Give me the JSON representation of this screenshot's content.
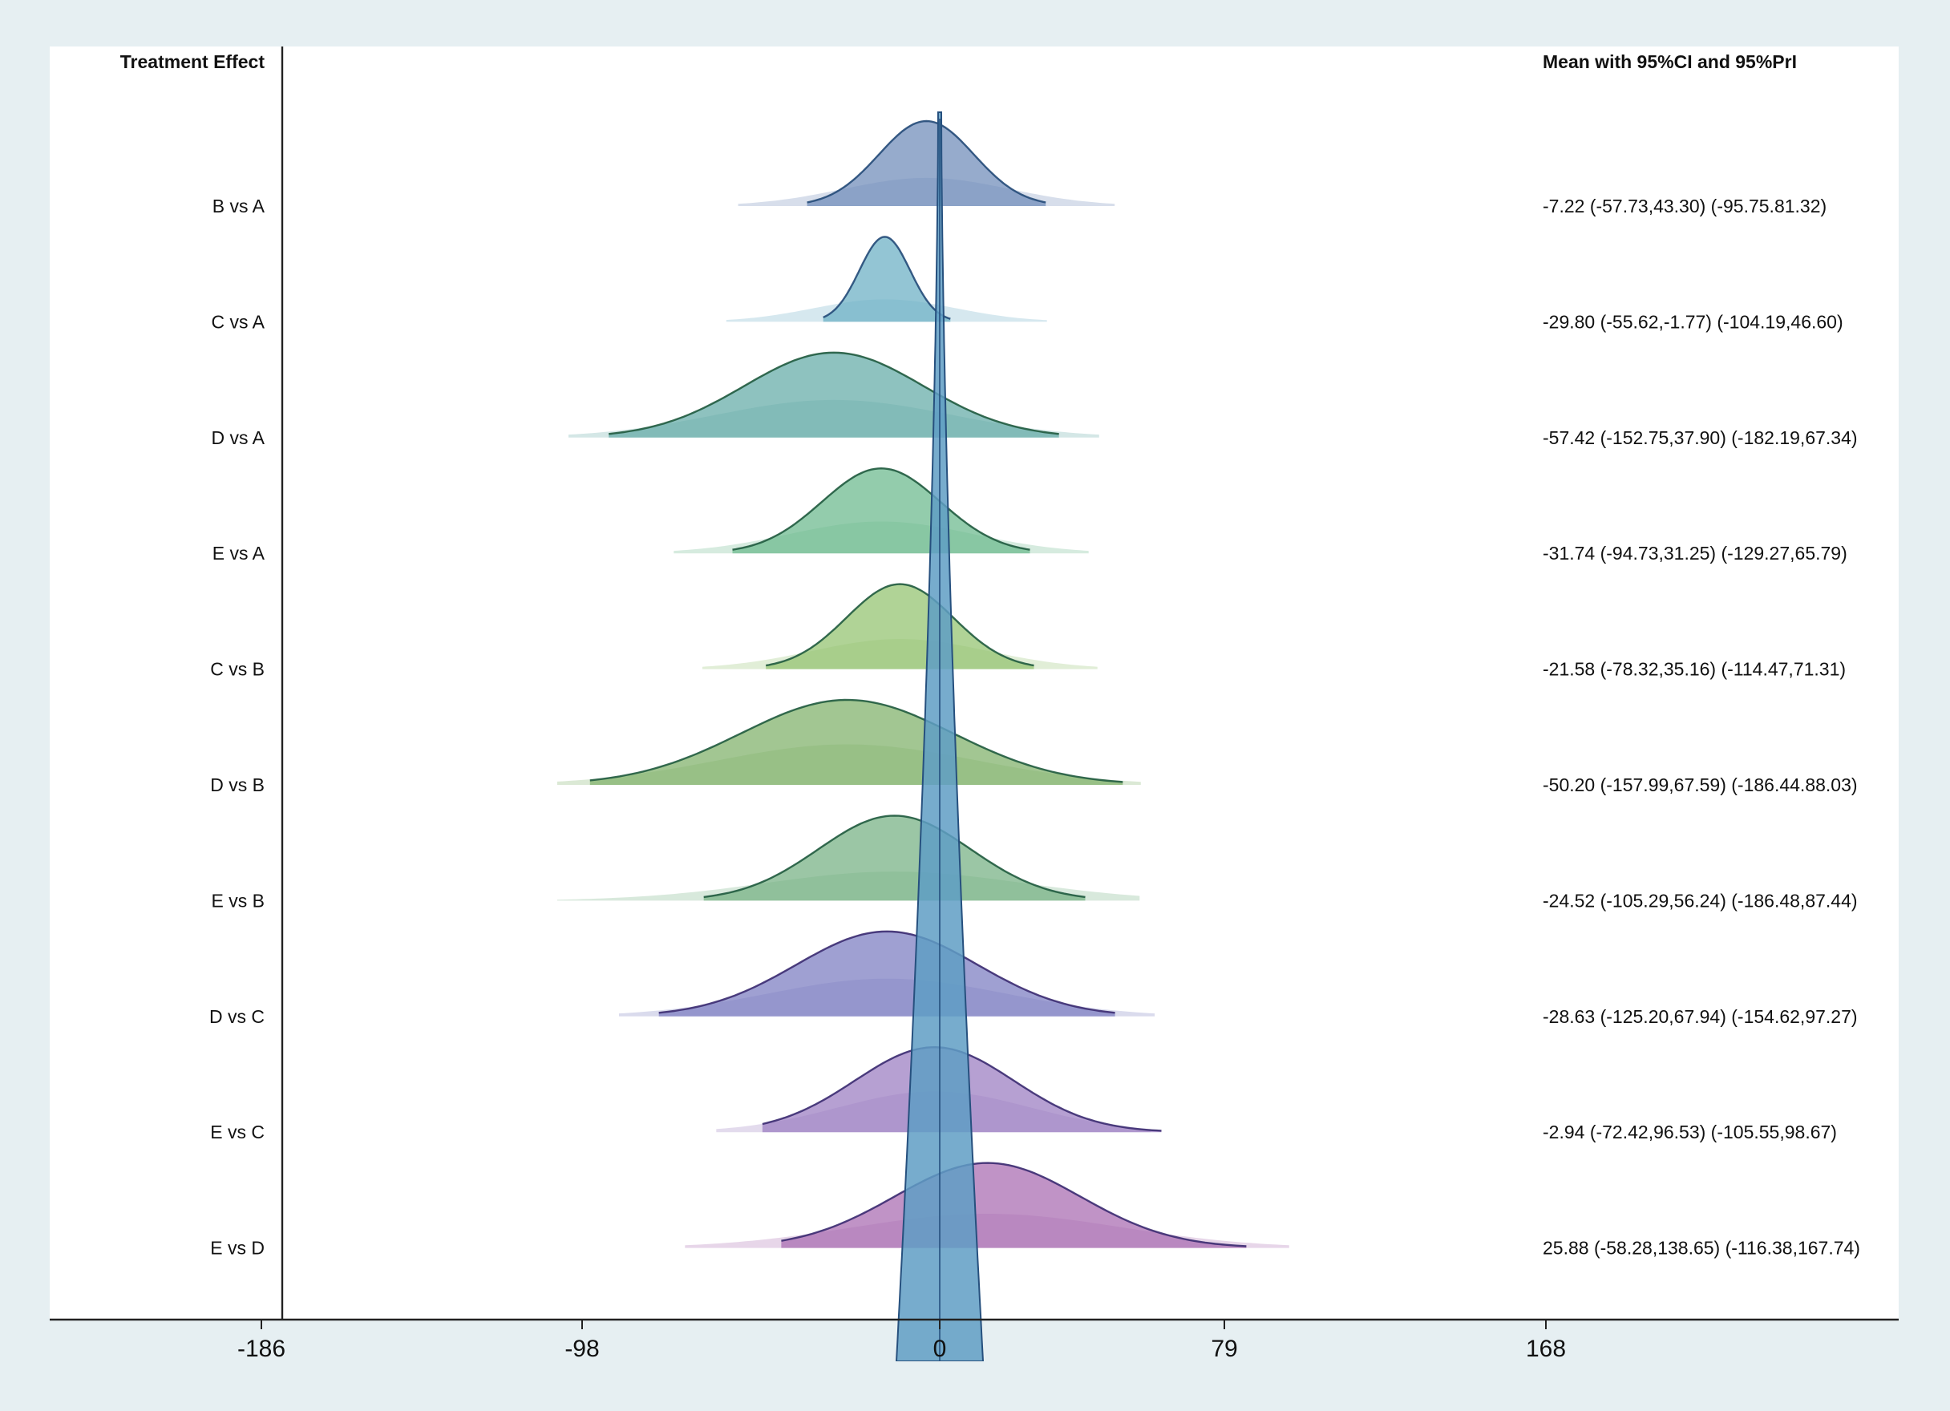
{
  "chart_data": {
    "type": "ridgeline",
    "left_header": "Treatment Effect",
    "right_header": "Mean with 95%CI and 95%PrI",
    "x_ticks": [
      -186,
      -98,
      0,
      79,
      168
    ],
    "xlim": [
      -246,
      266
    ],
    "reference_line": 0,
    "rows": [
      {
        "label": "B vs A",
        "mean": -7.22,
        "ci": [
          -57.73,
          43.3
        ],
        "pri": [
          -95.75,
          81.32
        ],
        "summary": "-7.22 (-57.73,43.30)  (-95.75.81.32)",
        "color": "#6e8ab8"
      },
      {
        "label": "C vs A",
        "mean": -29.8,
        "ci": [
          -55.62,
          -1.77
        ],
        "pri": [
          -104.19,
          46.6
        ],
        "summary": "-29.80 (-55.62,-1.77)  (-104.19,46.60)",
        "color": "#6aaec4"
      },
      {
        "label": "D vs A",
        "mean": -57.42,
        "ci": [
          -152.75,
          37.9
        ],
        "pri": [
          -182.19,
          67.34
        ],
        "summary": "-57.42 (-152.75,37.90)  (-182.19,67.34)",
        "color": "#63aaa6"
      },
      {
        "label": "E vs A",
        "mean": -31.74,
        "ci": [
          -94.73,
          31.25
        ],
        "pri": [
          -129.27,
          65.79
        ],
        "summary": "-31.74 (-94.73,31.25)  (-129.27,65.79)",
        "color": "#6ab88c"
      },
      {
        "label": "C vs B",
        "mean": -21.58,
        "ci": [
          -78.32,
          35.16
        ],
        "pri": [
          -114.47,
          71.31
        ],
        "summary": "-21.58 (-78.32,35.16)  (-114.47,71.31)",
        "color": "#92c26e"
      },
      {
        "label": "D vs B",
        "mean": -50.2,
        "ci": [
          -157.99,
          67.59
        ],
        "pri": [
          -186.44,
          88.03
        ],
        "summary": "-50.20 (-157.99,67.59)  (-186.44.88.03)",
        "color": "#7eb068"
      },
      {
        "label": "E vs B",
        "mean": -24.52,
        "ci": [
          -105.29,
          56.24
        ],
        "pri": [
          -186.48,
          87.44
        ],
        "summary": "-24.52 (-105.29,56.24)  (-186.48,87.44)",
        "color": "#74b082"
      },
      {
        "label": "D vs C",
        "mean": -28.63,
        "ci": [
          -125.2,
          67.94
        ],
        "pri": [
          -154.62,
          97.27
        ],
        "summary": "-28.63 (-125.20,67.94)  (-154.62,97.27)",
        "color": "#7a7cc0"
      },
      {
        "label": "E vs C",
        "mean": -2.94,
        "ci": [
          -72.42,
          96.53
        ],
        "pri": [
          -105.55,
          98.67
        ],
        "summary": "-2.94 (-72.42,96.53)  (-105.55,98.67)",
        "color": "#9a7cc0"
      },
      {
        "label": "E vs D",
        "mean": 25.88,
        "ci": [
          -58.28,
          138.65
        ],
        "pri": [
          -116.38,
          167.74
        ],
        "summary": "25.88 (-58.28,138.65)  (-116.38,167.74)",
        "color": "#a86ab0"
      }
    ]
  }
}
